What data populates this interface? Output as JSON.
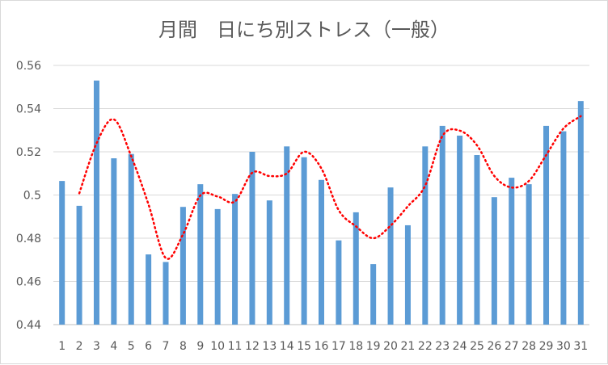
{
  "chart_data": {
    "type": "bar",
    "title": "月間　日にち別ストレス（一般）",
    "xlabel": "",
    "ylabel": "",
    "ylim": [
      0.44,
      0.56
    ],
    "yticks": [
      "0.44",
      "0.46",
      "0.48",
      "0.5",
      "0.52",
      "0.54",
      "0.56"
    ],
    "categories": [
      "1",
      "2",
      "3",
      "4",
      "5",
      "6",
      "7",
      "8",
      "9",
      "10",
      "11",
      "12",
      "13",
      "14",
      "15",
      "16",
      "17",
      "18",
      "19",
      "20",
      "21",
      "22",
      "23",
      "24",
      "25",
      "26",
      "27",
      "28",
      "29",
      "30",
      "31"
    ],
    "grid": true,
    "legend": "none",
    "series": [
      {
        "type": "bar",
        "color": "#5b9bd5",
        "values": [
          0.5065,
          0.495,
          0.553,
          0.517,
          0.519,
          0.4725,
          0.469,
          0.4945,
          0.505,
          0.4935,
          0.5005,
          0.52,
          0.4975,
          0.5225,
          0.5175,
          0.507,
          0.479,
          0.492,
          0.468,
          0.5035,
          0.486,
          0.5225,
          0.532,
          0.5275,
          0.5185,
          0.499,
          0.508,
          0.505,
          0.532,
          0.5295,
          0.5435
        ]
      },
      {
        "type": "line",
        "style": "dotted",
        "color": "#ff0000",
        "values": [
          null,
          0.5008,
          0.524,
          0.535,
          0.518,
          0.4957,
          0.4708,
          0.4818,
          0.4998,
          0.4993,
          0.497,
          0.5103,
          0.5088,
          0.51,
          0.52,
          0.5123,
          0.493,
          0.4855,
          0.48,
          0.4858,
          0.4948,
          0.5043,
          0.5273,
          0.5298,
          0.523,
          0.5088,
          0.5035,
          0.5065,
          0.5185,
          0.5308,
          0.5365
        ]
      }
    ]
  }
}
